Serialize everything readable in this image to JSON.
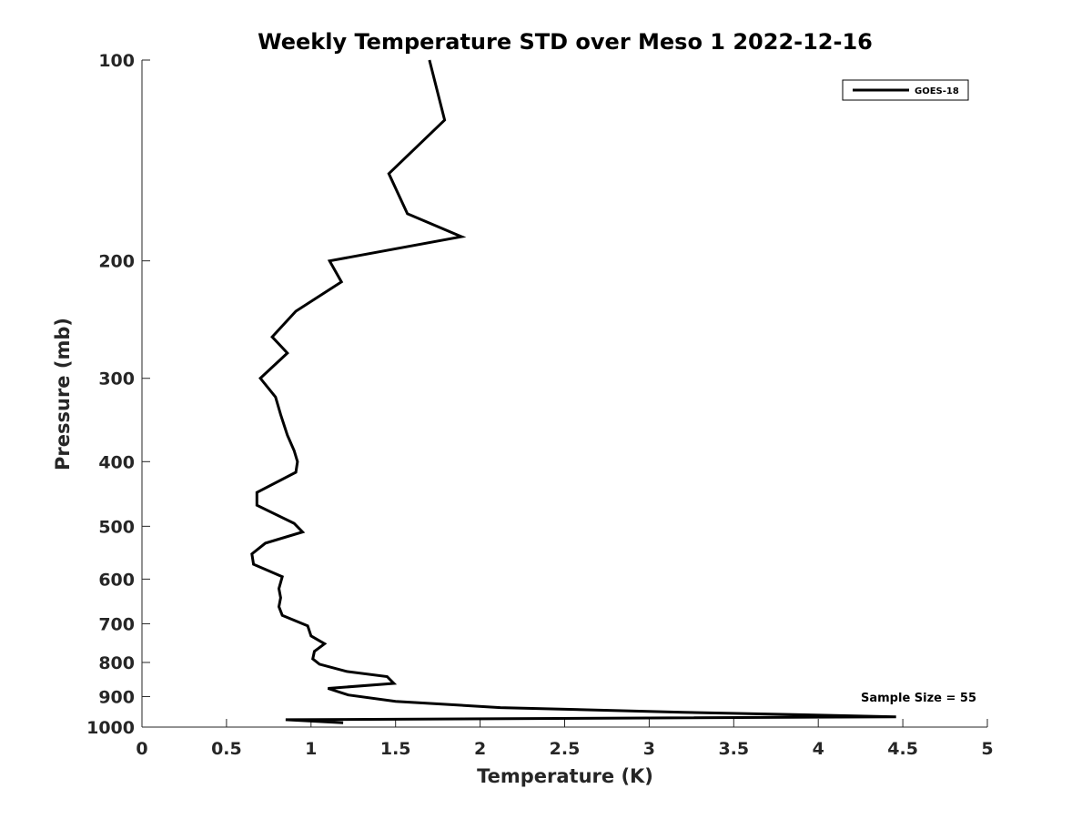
{
  "chart_data": {
    "type": "line",
    "title": "Weekly Temperature STD over Meso 1 2022-12-16",
    "xlabel": "Temperature (K)",
    "ylabel": "Pressure (mb)",
    "xlim": [
      0,
      5
    ],
    "ylim": [
      100,
      1000
    ],
    "yscale": "log",
    "y_reversed": true,
    "xticks": [
      0,
      0.5,
      1,
      1.5,
      2,
      2.5,
      3,
      3.5,
      4,
      4.5,
      5
    ],
    "xtick_labels": [
      "0",
      "0.5",
      "1",
      "1.5",
      "2",
      "2.5",
      "3",
      "3.5",
      "4",
      "4.5",
      "5"
    ],
    "yticks": [
      100,
      200,
      300,
      400,
      500,
      600,
      700,
      800,
      900,
      1000
    ],
    "ytick_labels": [
      "100",
      "200",
      "300",
      "400",
      "500",
      "600",
      "700",
      "800",
      "900",
      "1000"
    ],
    "grid": false,
    "legend_position": "top-right",
    "annotation": "Sample Size = 55",
    "series": [
      {
        "name": "GOES-18",
        "color": "#000000",
        "x": [
          1.7,
          1.79,
          1.46,
          1.57,
          1.89,
          1.11,
          1.18,
          0.91,
          0.77,
          0.86,
          0.7,
          0.79,
          0.82,
          0.86,
          0.9,
          0.92,
          0.91,
          0.68,
          0.68,
          0.9,
          0.95,
          0.73,
          0.65,
          0.66,
          0.83,
          0.81,
          0.82,
          0.81,
          0.83,
          0.98,
          1.0,
          1.08,
          1.02,
          1.01,
          1.05,
          1.21,
          1.45,
          1.49,
          1.1,
          1.22,
          1.5,
          2.12,
          3.2,
          4.46,
          0.85,
          1.19
        ],
        "y": [
          100,
          123,
          148,
          170,
          184,
          200,
          215,
          238,
          260,
          275,
          300,
          320,
          340,
          365,
          385,
          400,
          415,
          445,
          465,
          495,
          510,
          530,
          550,
          570,
          595,
          620,
          640,
          660,
          680,
          705,
          730,
          750,
          770,
          790,
          805,
          825,
          840,
          860,
          875,
          895,
          915,
          935,
          950,
          965,
          975,
          985
        ]
      }
    ]
  }
}
